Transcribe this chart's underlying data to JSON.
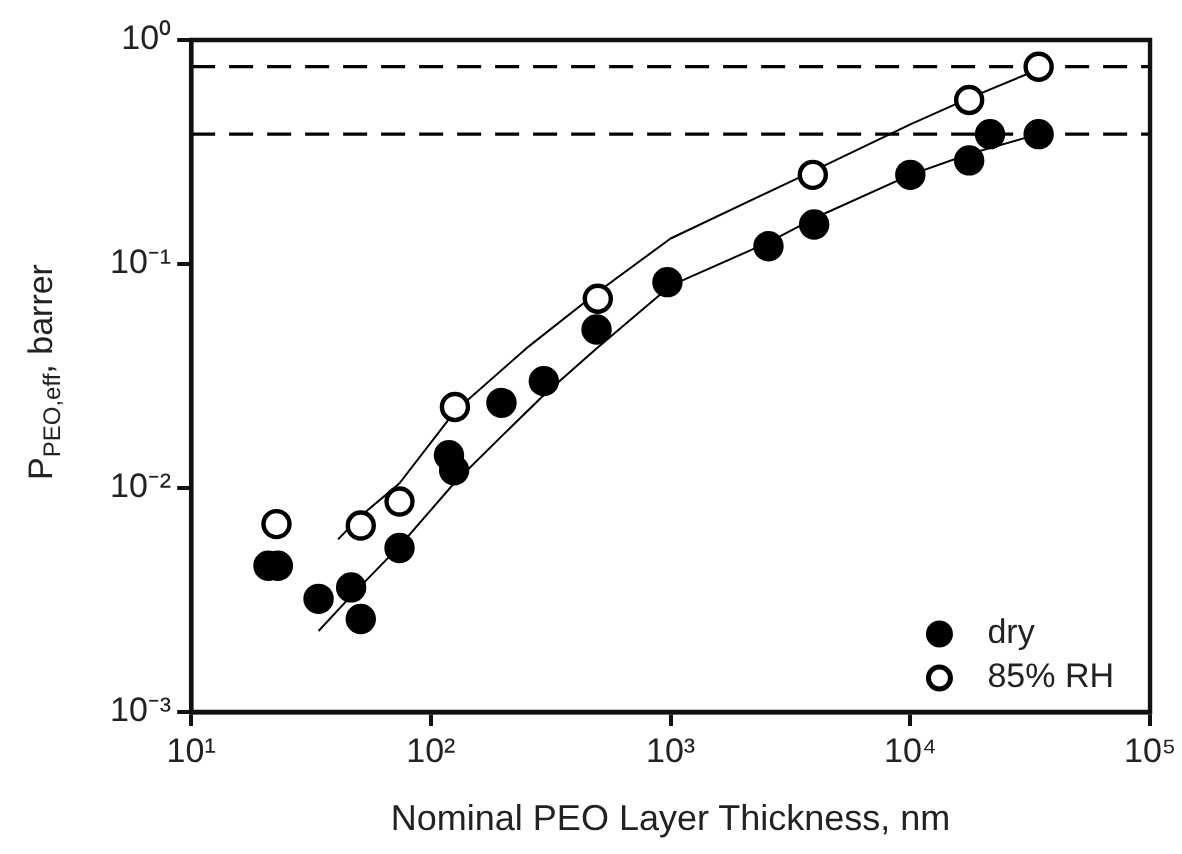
{
  "chart_data": {
    "type": "scatter",
    "xlabel": "Nominal PEO Layer Thickness, nm",
    "ylabel": "P$_{PEO,eff}$, barrer",
    "log": "xy",
    "grid": false,
    "legend": "bottom right",
    "marker": "circle",
    "xlim": [
      10,
      100000
    ],
    "xticks": [
      {
        "value": 10,
        "label": "10¹"
      },
      {
        "value": 100,
        "label": "10²"
      },
      {
        "value": 1000,
        "label": "10³"
      },
      {
        "value": 10000,
        "label": "10⁴"
      },
      {
        "value": 100000,
        "label": "10⁵"
      }
    ],
    "ylim": [
      0.001,
      1
    ],
    "yticks": [
      {
        "value": 0.001,
        "label": "10⁻³"
      },
      {
        "value": 0.01,
        "label": "10⁻²"
      },
      {
        "value": 0.1,
        "label": "10⁻¹"
      },
      {
        "value": 1,
        "label": "10⁰"
      }
    ],
    "ref_lines": [
      {
        "axis": "y",
        "value": 0.76,
        "color": "#000000",
        "line_style": "dashed"
      },
      {
        "axis": "y",
        "value": 0.38,
        "color": "#000000",
        "line_style": "dashed"
      }
    ],
    "series": [
      {
        "name": "dry",
        "color": "#000000",
        "x": [
          21,
          23,
          34,
          46.5,
          51,
          74,
          119,
          125,
          197,
          296,
          491,
          970,
          2560,
          3970,
          10000,
          17600,
          21500,
          34300
        ],
        "values": [
          0.0045,
          0.0045,
          0.0032,
          0.0036,
          0.0026,
          0.0054,
          0.014,
          0.012,
          0.024,
          0.03,
          0.051,
          0.083,
          0.12,
          0.15,
          0.25,
          0.29,
          0.38,
          0.38
        ]
      },
      {
        "name": "85% RH",
        "color": "#000000",
        "x": [
          22.7,
          51,
          74,
          126,
          497,
          3920,
          17600,
          34300
        ],
        "values": [
          0.0069,
          0.0068,
          0.0087,
          0.023,
          0.07,
          0.25,
          0.54,
          0.76
        ]
      },
      {
        "type": "line",
        "color": "#000000",
        "marker": "none",
        "x": [
          41,
          51,
          74,
          126,
          250,
          497,
          1000,
          3920,
          10000,
          17600,
          34300
        ],
        "values": [
          0.0059,
          0.0075,
          0.0105,
          0.022,
          0.042,
          0.075,
          0.13,
          0.26,
          0.42,
          0.55,
          0.74
        ]
      },
      {
        "type": "line",
        "color": "#000000",
        "marker": "none",
        "x": [
          34,
          46.5,
          74,
          125,
          197,
          296,
          491,
          1000,
          2560,
          3970,
          10000,
          17600,
          34300
        ],
        "values": [
          0.0023,
          0.0033,
          0.0055,
          0.0105,
          0.017,
          0.026,
          0.042,
          0.08,
          0.125,
          0.16,
          0.25,
          0.31,
          0.38
        ]
      }
    ]
  }
}
